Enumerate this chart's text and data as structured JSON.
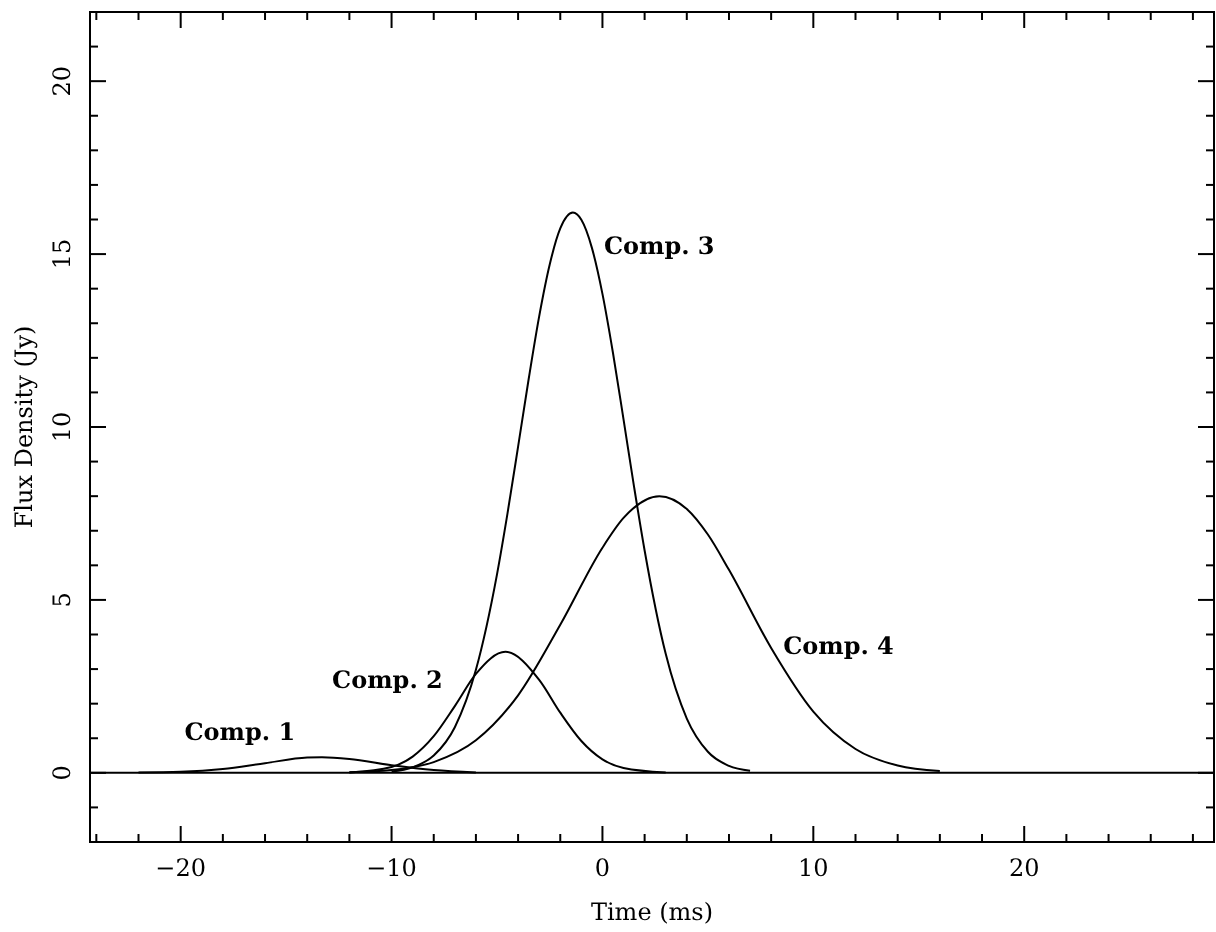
{
  "chart_data": {
    "type": "line",
    "xlabel": "Time (ms)",
    "ylabel": "Flux Density (Jy)",
    "xlim": [
      -24.3,
      29
    ],
    "ylim": [
      -2,
      22
    ],
    "xticks": [
      {
        "value": -24,
        "label": null
      },
      {
        "value": -22,
        "label": null
      },
      -20,
      {
        "value": -18,
        "label": null
      },
      {
        "value": -16,
        "label": null
      },
      {
        "value": -14,
        "label": null
      },
      {
        "value": -12,
        "label": null
      },
      -10,
      {
        "value": -8,
        "label": null
      },
      {
        "value": -6,
        "label": null
      },
      {
        "value": -4,
        "label": null
      },
      {
        "value": -2,
        "label": null
      },
      0,
      {
        "value": 2,
        "label": null
      },
      {
        "value": 4,
        "label": null
      },
      {
        "value": 6,
        "label": null
      },
      {
        "value": 8,
        "label": null
      },
      10,
      {
        "value": 12,
        "label": null
      },
      {
        "value": 14,
        "label": null
      },
      {
        "value": 16,
        "label": null
      },
      {
        "value": 18,
        "label": null
      },
      20,
      {
        "value": 22,
        "label": null
      },
      {
        "value": 24,
        "label": null
      },
      {
        "value": 26,
        "label": null
      },
      {
        "value": 28,
        "label": null
      }
    ],
    "yticks": [
      {
        "value": -2,
        "label": null
      },
      {
        "value": -1,
        "label": null
      },
      0,
      {
        "value": 1,
        "label": null
      },
      {
        "value": 2,
        "label": null
      },
      {
        "value": 3,
        "label": null
      },
      {
        "value": 4,
        "label": null
      },
      5,
      {
        "value": 6,
        "label": null
      },
      {
        "value": 7,
        "label": null
      },
      {
        "value": 8,
        "label": null
      },
      {
        "value": 9,
        "label": null
      },
      10,
      {
        "value": 11,
        "label": null
      },
      {
        "value": 12,
        "label": null
      },
      {
        "value": 13,
        "label": null
      },
      {
        "value": 14,
        "label": null
      },
      15,
      {
        "value": 16,
        "label": null
      },
      {
        "value": 17,
        "label": null
      },
      {
        "value": 18,
        "label": null
      },
      {
        "value": 19,
        "label": null
      },
      20,
      {
        "value": 21,
        "label": null
      },
      {
        "value": 22,
        "label": null
      }
    ],
    "grid": false,
    "marker": "none",
    "line_style": "solid",
    "ref_lines": [
      {
        "axis": "y",
        "value": 0,
        "color": "#000000"
      }
    ],
    "series": [
      {
        "color": "#000000",
        "x": [
          -22,
          -20,
          -18,
          -16,
          -14,
          -13.3,
          -12,
          -10,
          -8,
          -6
        ],
        "values": [
          0.01,
          0.03,
          0.11,
          0.28,
          0.44,
          0.45,
          0.4,
          0.22,
          0.08,
          0.01
        ]
      },
      {
        "color": "#000000",
        "x": [
          -12,
          -10,
          -9,
          -8,
          -7,
          -6,
          -4.6,
          -3,
          -2,
          -1,
          0,
          1,
          3
        ],
        "values": [
          0.01,
          0.17,
          0.47,
          1.06,
          1.93,
          2.86,
          3.5,
          2.69,
          1.74,
          0.92,
          0.39,
          0.14,
          0.01
        ]
      },
      {
        "color": "#000000",
        "x": [
          -10,
          -9,
          -8,
          -7,
          -6,
          -5,
          -4.5,
          -4,
          -3.5,
          -3,
          -2.5,
          -2,
          -1.4,
          -1,
          -0.5,
          0,
          0.5,
          1,
          1.5,
          2,
          3,
          4,
          5,
          6,
          7
        ],
        "values": [
          0.04,
          0.16,
          0.5,
          1.32,
          2.98,
          5.74,
          7.51,
          9.43,
          11.38,
          13.2,
          14.7,
          15.74,
          16.2,
          15.99,
          15.18,
          13.85,
          12.14,
          10.22,
          8.27,
          6.43,
          3.44,
          1.57,
          0.61,
          0.2,
          0.06
        ]
      },
      {
        "color": "#000000",
        "x": [
          -12,
          -10,
          -8,
          -6,
          -4,
          -2,
          0,
          1,
          2.7,
          4,
          5,
          6,
          8,
          10,
          12,
          14,
          16
        ],
        "values": [
          0.02,
          0.08,
          0.31,
          0.94,
          2.24,
          4.28,
          6.51,
          7.37,
          8,
          7.63,
          6.89,
          5.87,
          3.61,
          1.77,
          0.69,
          0.21,
          0.05
        ]
      }
    ],
    "annotations": [
      {
        "text": "Comp. 1",
        "x": -14,
        "y": 0.44
      },
      {
        "text": "Comp. 2",
        "x": -7,
        "y": 1.93
      },
      {
        "text": "Comp. 3",
        "x": -0.5,
        "y": 15.18
      },
      {
        "text": "Comp. 4",
        "x": 8,
        "y": 3.61
      }
    ]
  }
}
